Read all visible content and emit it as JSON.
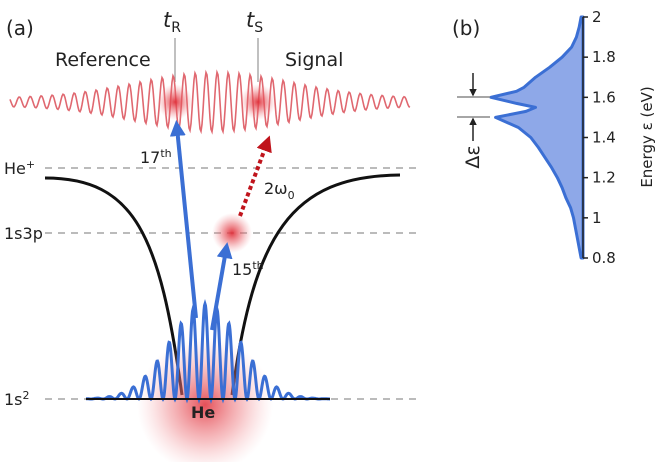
{
  "panel_a": {
    "label": "(a)",
    "t_reference": {
      "base": "t",
      "sub": "R"
    },
    "t_signal": {
      "base": "t",
      "sub": "S"
    },
    "reference": "Reference",
    "signal": "Signal",
    "ion_level": {
      "base": "He",
      "sup": "+"
    },
    "excited_level": "1s3p",
    "ground_level": {
      "base": "1s",
      "sup": "2"
    },
    "atom": "He",
    "harmonic_17": {
      "base": "17",
      "sup": "th"
    },
    "harmonic_15": {
      "base": "15",
      "sup": "th"
    },
    "probe": {
      "base": "2ω",
      "sub": "0"
    }
  },
  "chart_data": {
    "type": "area",
    "label": "(b)",
    "ylabel": "Energy ε (eV)",
    "annotation": "Δε",
    "color": "#3b6fd4",
    "ylim": [
      0.8,
      2
    ],
    "yticks": [
      0.8,
      1,
      1.2,
      1.4,
      1.6,
      1.8,
      2
    ],
    "x": [
      0.8,
      0.85,
      0.9,
      0.95,
      1.0,
      1.05,
      1.1,
      1.15,
      1.2,
      1.25,
      1.3,
      1.35,
      1.4,
      1.45,
      1.5,
      1.53,
      1.55,
      1.57,
      1.6,
      1.63,
      1.65,
      1.7,
      1.75,
      1.8,
      1.85,
      1.9,
      1.95,
      2.0
    ],
    "values": [
      0.02,
      0.04,
      0.06,
      0.08,
      0.1,
      0.13,
      0.18,
      0.22,
      0.27,
      0.33,
      0.4,
      0.47,
      0.55,
      0.68,
      0.92,
      0.6,
      0.5,
      0.7,
      0.97,
      0.7,
      0.62,
      0.5,
      0.35,
      0.22,
      0.12,
      0.07,
      0.04,
      0.02
    ]
  }
}
